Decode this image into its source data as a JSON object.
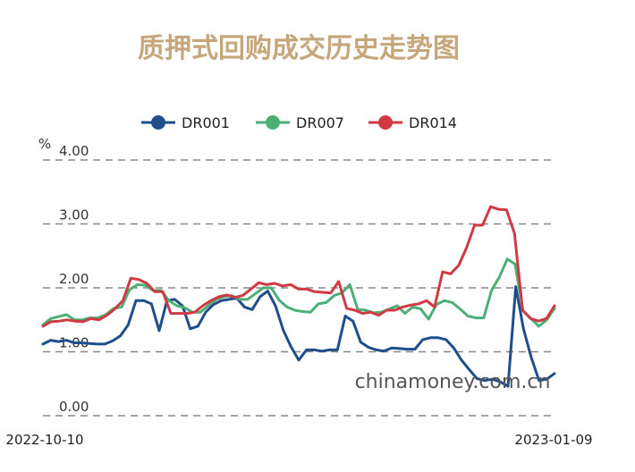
{
  "chart_data": {
    "type": "line",
    "title": "质押式回购成交历史走势图",
    "ylabel": "%",
    "ylim": [
      0,
      4
    ],
    "yticks": [
      "0.00",
      "1.00",
      "2.00",
      "3.00",
      "4.00"
    ],
    "xlabels": [
      "2022-10-10",
      "2023-01-09"
    ],
    "watermark": "chinamoney.com.cn",
    "grid": true,
    "legend_position": "top-center",
    "title_color": "#c5a77b",
    "series": [
      {
        "name": "DR001",
        "color": "#1f4e8c",
        "values": [
          1.12,
          1.18,
          1.16,
          1.18,
          1.14,
          1.14,
          1.13,
          1.12,
          1.12,
          1.17,
          1.25,
          1.42,
          1.8,
          1.8,
          1.75,
          1.33,
          1.8,
          1.82,
          1.72,
          1.36,
          1.4,
          1.62,
          1.74,
          1.8,
          1.82,
          1.84,
          1.7,
          1.66,
          1.86,
          1.95,
          1.72,
          1.34,
          1.08,
          0.87,
          1.03,
          1.03,
          1.01,
          1.03,
          1.03,
          1.56,
          1.48,
          1.15,
          1.07,
          1.03,
          1.01,
          1.06,
          1.05,
          1.04,
          1.04,
          1.19,
          1.22,
          1.22,
          1.19,
          1.06,
          0.87,
          0.72,
          0.58,
          0.55,
          0.57,
          0.53,
          0.46,
          2.02,
          1.36,
          0.91,
          0.55,
          0.57,
          0.66
        ]
      },
      {
        "name": "DR007",
        "color": "#4caf76",
        "values": [
          1.42,
          1.52,
          1.55,
          1.58,
          1.5,
          1.5,
          1.53,
          1.53,
          1.58,
          1.68,
          1.7,
          1.97,
          2.05,
          2.04,
          1.96,
          1.96,
          1.8,
          1.72,
          1.69,
          1.62,
          1.62,
          1.72,
          1.82,
          1.86,
          1.88,
          1.82,
          1.82,
          1.91,
          2.0,
          2.0,
          1.81,
          1.7,
          1.65,
          1.63,
          1.62,
          1.75,
          1.77,
          1.88,
          1.92,
          2.05,
          1.66,
          1.65,
          1.61,
          1.62,
          1.67,
          1.72,
          1.6,
          1.7,
          1.67,
          1.51,
          1.74,
          1.8,
          1.77,
          1.67,
          1.56,
          1.53,
          1.53,
          1.96,
          2.17,
          2.45,
          2.37,
          1.64,
          1.52,
          1.4,
          1.5,
          1.68
        ]
      },
      {
        "name": "DR014",
        "color": "#cf3a44",
        "values": [
          1.4,
          1.47,
          1.48,
          1.5,
          1.48,
          1.47,
          1.52,
          1.5,
          1.57,
          1.67,
          1.8,
          2.15,
          2.13,
          2.07,
          1.94,
          1.94,
          1.6,
          1.6,
          1.6,
          1.62,
          1.72,
          1.8,
          1.86,
          1.89,
          1.85,
          1.88,
          1.98,
          2.08,
          2.05,
          2.07,
          2.03,
          2.05,
          1.98,
          1.98,
          1.94,
          1.93,
          1.92,
          2.1,
          1.68,
          1.65,
          1.6,
          1.62,
          1.57,
          1.65,
          1.65,
          1.7,
          1.73,
          1.75,
          1.8,
          1.7,
          2.25,
          2.22,
          2.35,
          2.63,
          2.98,
          2.98,
          3.27,
          3.23,
          3.22,
          2.85,
          1.65,
          1.52,
          1.48,
          1.52,
          1.72
        ]
      }
    ]
  }
}
